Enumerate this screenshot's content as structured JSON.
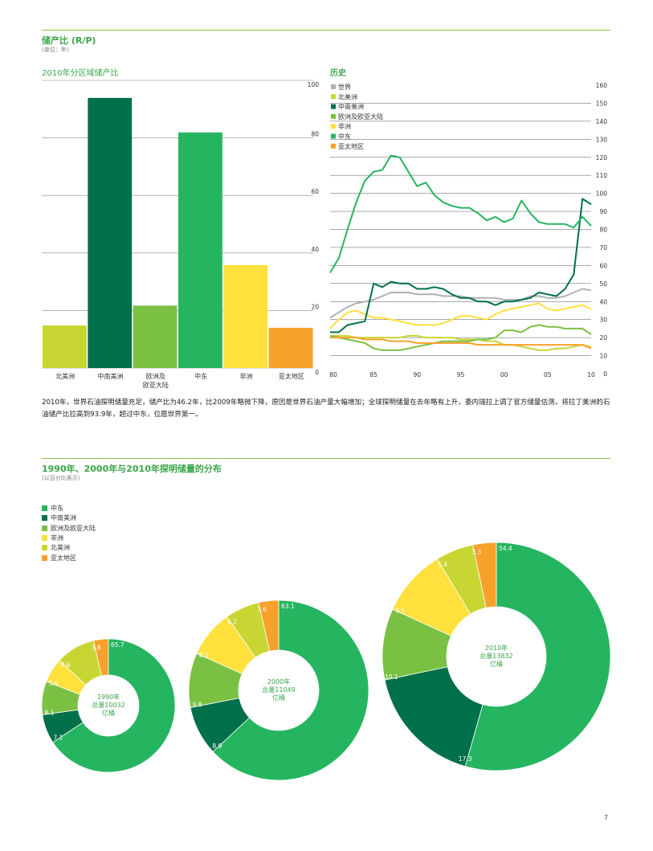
{
  "page": {
    "title": "储产比 (R/P)",
    "subtitle": "(单位：年)",
    "paragraph": "2010年，世界石油探明储量充足，储产比为46.2年，比2009年略微下降，原因是世界石油产量大幅增加；全球探明储量在去年略有上升，委内瑞拉上调了官方储量估测，将拉丁美洲的石油储产比拉高到93.9年，超过中东，位居世界第一。",
    "section2_title": "1990年、2000年与2010年探明储量的分布",
    "section2_subtitle": "(以百分比表示)",
    "page_number": "7"
  },
  "colors": {
    "north_america": "#c8d633",
    "s_c_america": "#00704a",
    "europe_eurasia": "#7ac143",
    "africa": "#ffe03d",
    "middle_east": "#25b560",
    "asia_pacific": "#f7a12b",
    "world": "#b0b0b0",
    "accent": "#3aa64a"
  },
  "chart_data": [
    {
      "type": "bar",
      "title": "2010年分区域储产比",
      "categories": [
        "北美洲",
        "中南美洲",
        "欧洲及\n欧亚大陆",
        "中东",
        "非洲",
        "亚太地区"
      ],
      "values": [
        14.8,
        93.9,
        21.7,
        81.9,
        35.8,
        14.0
      ],
      "bar_colors": [
        "#c8d633",
        "#00704a",
        "#7ac143",
        "#25b560",
        "#ffe03d",
        "#f7a12b"
      ],
      "ylim": [
        0,
        100
      ],
      "yticks": [
        0,
        20,
        40,
        60,
        80,
        100
      ],
      "grid": true
    },
    {
      "type": "line",
      "title": "历史",
      "x": [
        1980,
        1981,
        1982,
        1983,
        1984,
        1985,
        1986,
        1987,
        1988,
        1989,
        1990,
        1991,
        1992,
        1993,
        1994,
        1995,
        1996,
        1997,
        1998,
        1999,
        2000,
        2001,
        2002,
        2003,
        2004,
        2005,
        2006,
        2007,
        2008,
        2009,
        2010
      ],
      "xticks": [
        1980,
        1985,
        1990,
        1995,
        2000,
        2005,
        2010
      ],
      "xtick_labels": [
        "80",
        "85",
        "90",
        "95",
        "00",
        "05",
        "10"
      ],
      "ylim": [
        0,
        160
      ],
      "yticks": [
        0,
        10,
        20,
        30,
        40,
        50,
        60,
        70,
        80,
        90,
        100,
        110,
        120,
        130,
        140,
        150,
        160
      ],
      "legend": [
        "世界",
        "北美洲",
        "中南美洲",
        "欧洲及欧亚大陆",
        "非洲",
        "中东",
        "亚太地区"
      ],
      "series": [
        {
          "name": "世界",
          "color": "#b0b0b0",
          "values": [
            31,
            34,
            37,
            39,
            40,
            41,
            43,
            45,
            45,
            45,
            44,
            44,
            44,
            43,
            43,
            43,
            42,
            42,
            42,
            42,
            41,
            41,
            41,
            43,
            43,
            42,
            42,
            43,
            45,
            47,
            46.2
          ]
        },
        {
          "name": "北美洲",
          "color": "#c8d633",
          "values": [
            21,
            21,
            21,
            20,
            20,
            20,
            20,
            20,
            20,
            21,
            21,
            20,
            20,
            20,
            20,
            19,
            19,
            19,
            18,
            18,
            16,
            16,
            15,
            14,
            13,
            13,
            14,
            14,
            15,
            16,
            14.8
          ]
        },
        {
          "name": "中南美洲",
          "color": "#00704a",
          "values": [
            23,
            23,
            27,
            28,
            29,
            50,
            48,
            51,
            50,
            50,
            47,
            47,
            48,
            47,
            44,
            42,
            42,
            40,
            40,
            38,
            40,
            40,
            41,
            42,
            45,
            44,
            43,
            47,
            55,
            97,
            93.9
          ]
        },
        {
          "name": "欧洲及欧亚大陆",
          "color": "#7ac143",
          "values": [
            21,
            20,
            19,
            18,
            17,
            14,
            13,
            13,
            13,
            14,
            15,
            16,
            17,
            18,
            18,
            18,
            18,
            19,
            19,
            20,
            24,
            24,
            23,
            26,
            27,
            26,
            26,
            25,
            25,
            25,
            21.7
          ]
        },
        {
          "name": "非洲",
          "color": "#ffe03d",
          "values": [
            25,
            30,
            34,
            35,
            33,
            31,
            31,
            30,
            29,
            28,
            27,
            27,
            27,
            28,
            30,
            32,
            32,
            31,
            30,
            33,
            35,
            36,
            37,
            38,
            39,
            36,
            35,
            36,
            37,
            38,
            35.8
          ]
        },
        {
          "name": "中东",
          "color": "#25b560",
          "values": [
            56,
            64,
            80,
            95,
            107,
            112,
            113,
            121,
            120,
            112,
            104,
            106,
            99,
            95,
            93,
            92,
            92,
            89,
            85,
            87,
            84,
            86,
            96,
            89,
            84,
            83,
            83,
            83,
            81,
            87,
            81.9
          ]
        },
        {
          "name": "亚太地区",
          "color": "#f7a12b",
          "values": [
            20,
            20,
            20,
            20,
            19,
            19,
            19,
            18,
            18,
            18,
            17,
            17,
            17,
            17,
            17,
            17,
            17,
            16,
            16,
            16,
            16,
            16,
            16,
            16,
            16,
            16,
            16,
            16,
            16,
            16,
            14.0
          ]
        }
      ]
    },
    {
      "type": "pie",
      "title": "1990年、2000年与2010年探明储量的分布",
      "legend": [
        "中东",
        "中南美洲",
        "欧洲及欧亚大陆",
        "非洲",
        "北美洲",
        "亚太地区"
      ],
      "rings": [
        {
          "center_text": [
            "1990年",
            "总量10032",
            "亿桶"
          ],
          "slices": [
            {
              "name": "中东",
              "value": 65.7,
              "label": "65.7"
            },
            {
              "name": "中南美洲",
              "value": 7.1,
              "label": "7.1"
            },
            {
              "name": "欧洲及欧亚大陆",
              "value": 8.1,
              "label": "8.1"
            },
            {
              "name": "非洲",
              "value": 5.9,
              "label": "5.9"
            },
            {
              "name": "北美洲",
              "value": 9.6,
              "label": "9.6"
            },
            {
              "name": "亚太地区",
              "value": 3.6,
              "label": "3.6"
            }
          ]
        },
        {
          "center_text": [
            "2000年",
            "总量11049",
            "亿桶"
          ],
          "slices": [
            {
              "name": "中东",
              "value": 63.1,
              "label": "63.1"
            },
            {
              "name": "中南美洲",
              "value": 8.9,
              "label": "8.9"
            },
            {
              "name": "欧洲及欧亚大陆",
              "value": 9.8,
              "label": "9.8"
            },
            {
              "name": "非洲",
              "value": 8.5,
              "label": "8.5"
            },
            {
              "name": "北美洲",
              "value": 6.2,
              "label": "6.2"
            },
            {
              "name": "亚太地区",
              "value": 3.6,
              "label": "3.6"
            }
          ]
        },
        {
          "center_text": [
            "2010年",
            "总量13832",
            "亿桶"
          ],
          "slices": [
            {
              "name": "中东",
              "value": 54.4,
              "label": "54.4"
            },
            {
              "name": "中南美洲",
              "value": 17.3,
              "label": "17.3"
            },
            {
              "name": "欧洲及欧亚大陆",
              "value": 10.1,
              "label": "10.1"
            },
            {
              "name": "非洲",
              "value": 9.5,
              "label": "9.5"
            },
            {
              "name": "北美洲",
              "value": 5.4,
              "label": "5.4"
            },
            {
              "name": "亚太地区",
              "value": 3.3,
              "label": "3.3"
            }
          ]
        }
      ]
    }
  ]
}
